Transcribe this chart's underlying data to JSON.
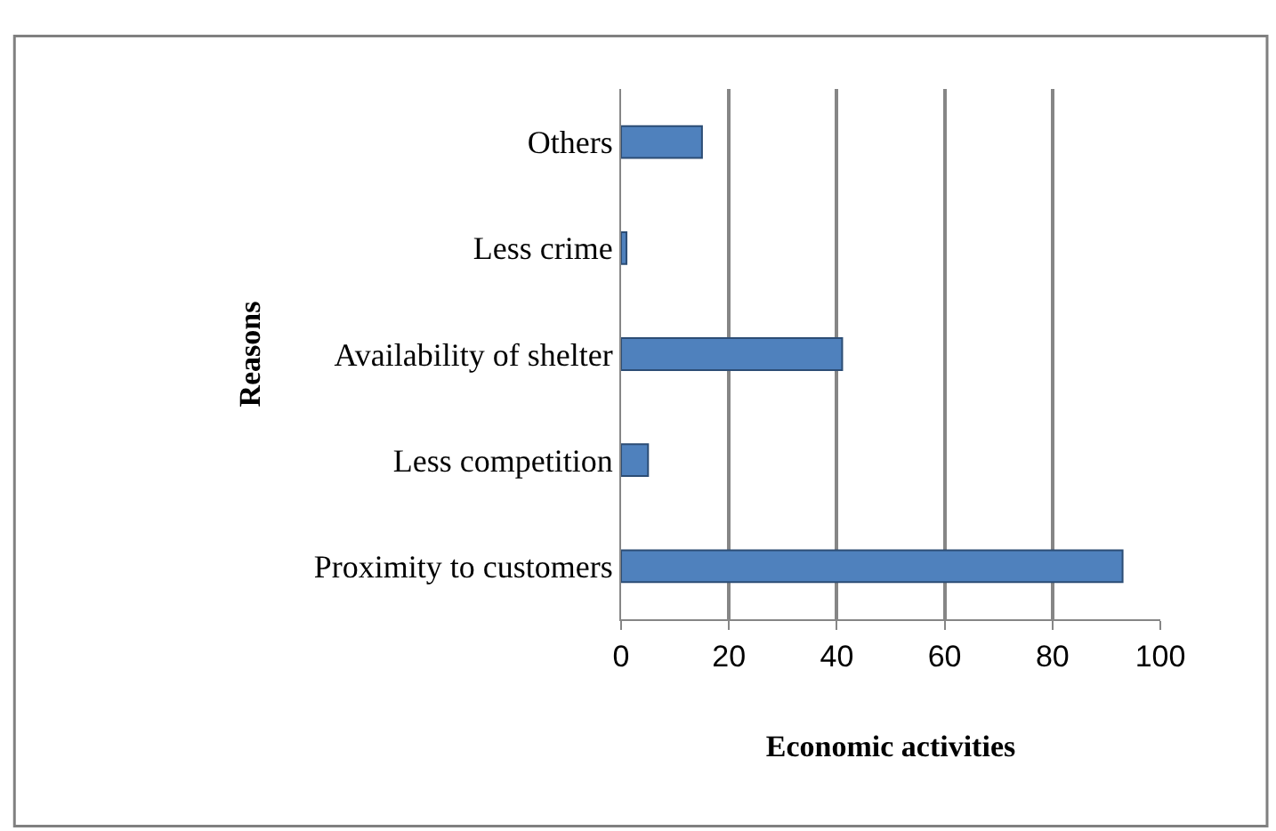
{
  "chart_data": {
    "type": "bar",
    "orientation": "horizontal",
    "xlabel": "Economic activities",
    "ylabel": "Reasons",
    "categories": [
      "Others",
      "Less crime",
      "Availability of shelter",
      "Less competition",
      "Proximity to customers"
    ],
    "values": [
      15,
      1,
      41,
      5,
      93
    ],
    "color": "#4f81bd",
    "xlim": [
      0,
      100
    ],
    "xticks": [
      0,
      20,
      40,
      60,
      80,
      100
    ],
    "grid": "x"
  }
}
